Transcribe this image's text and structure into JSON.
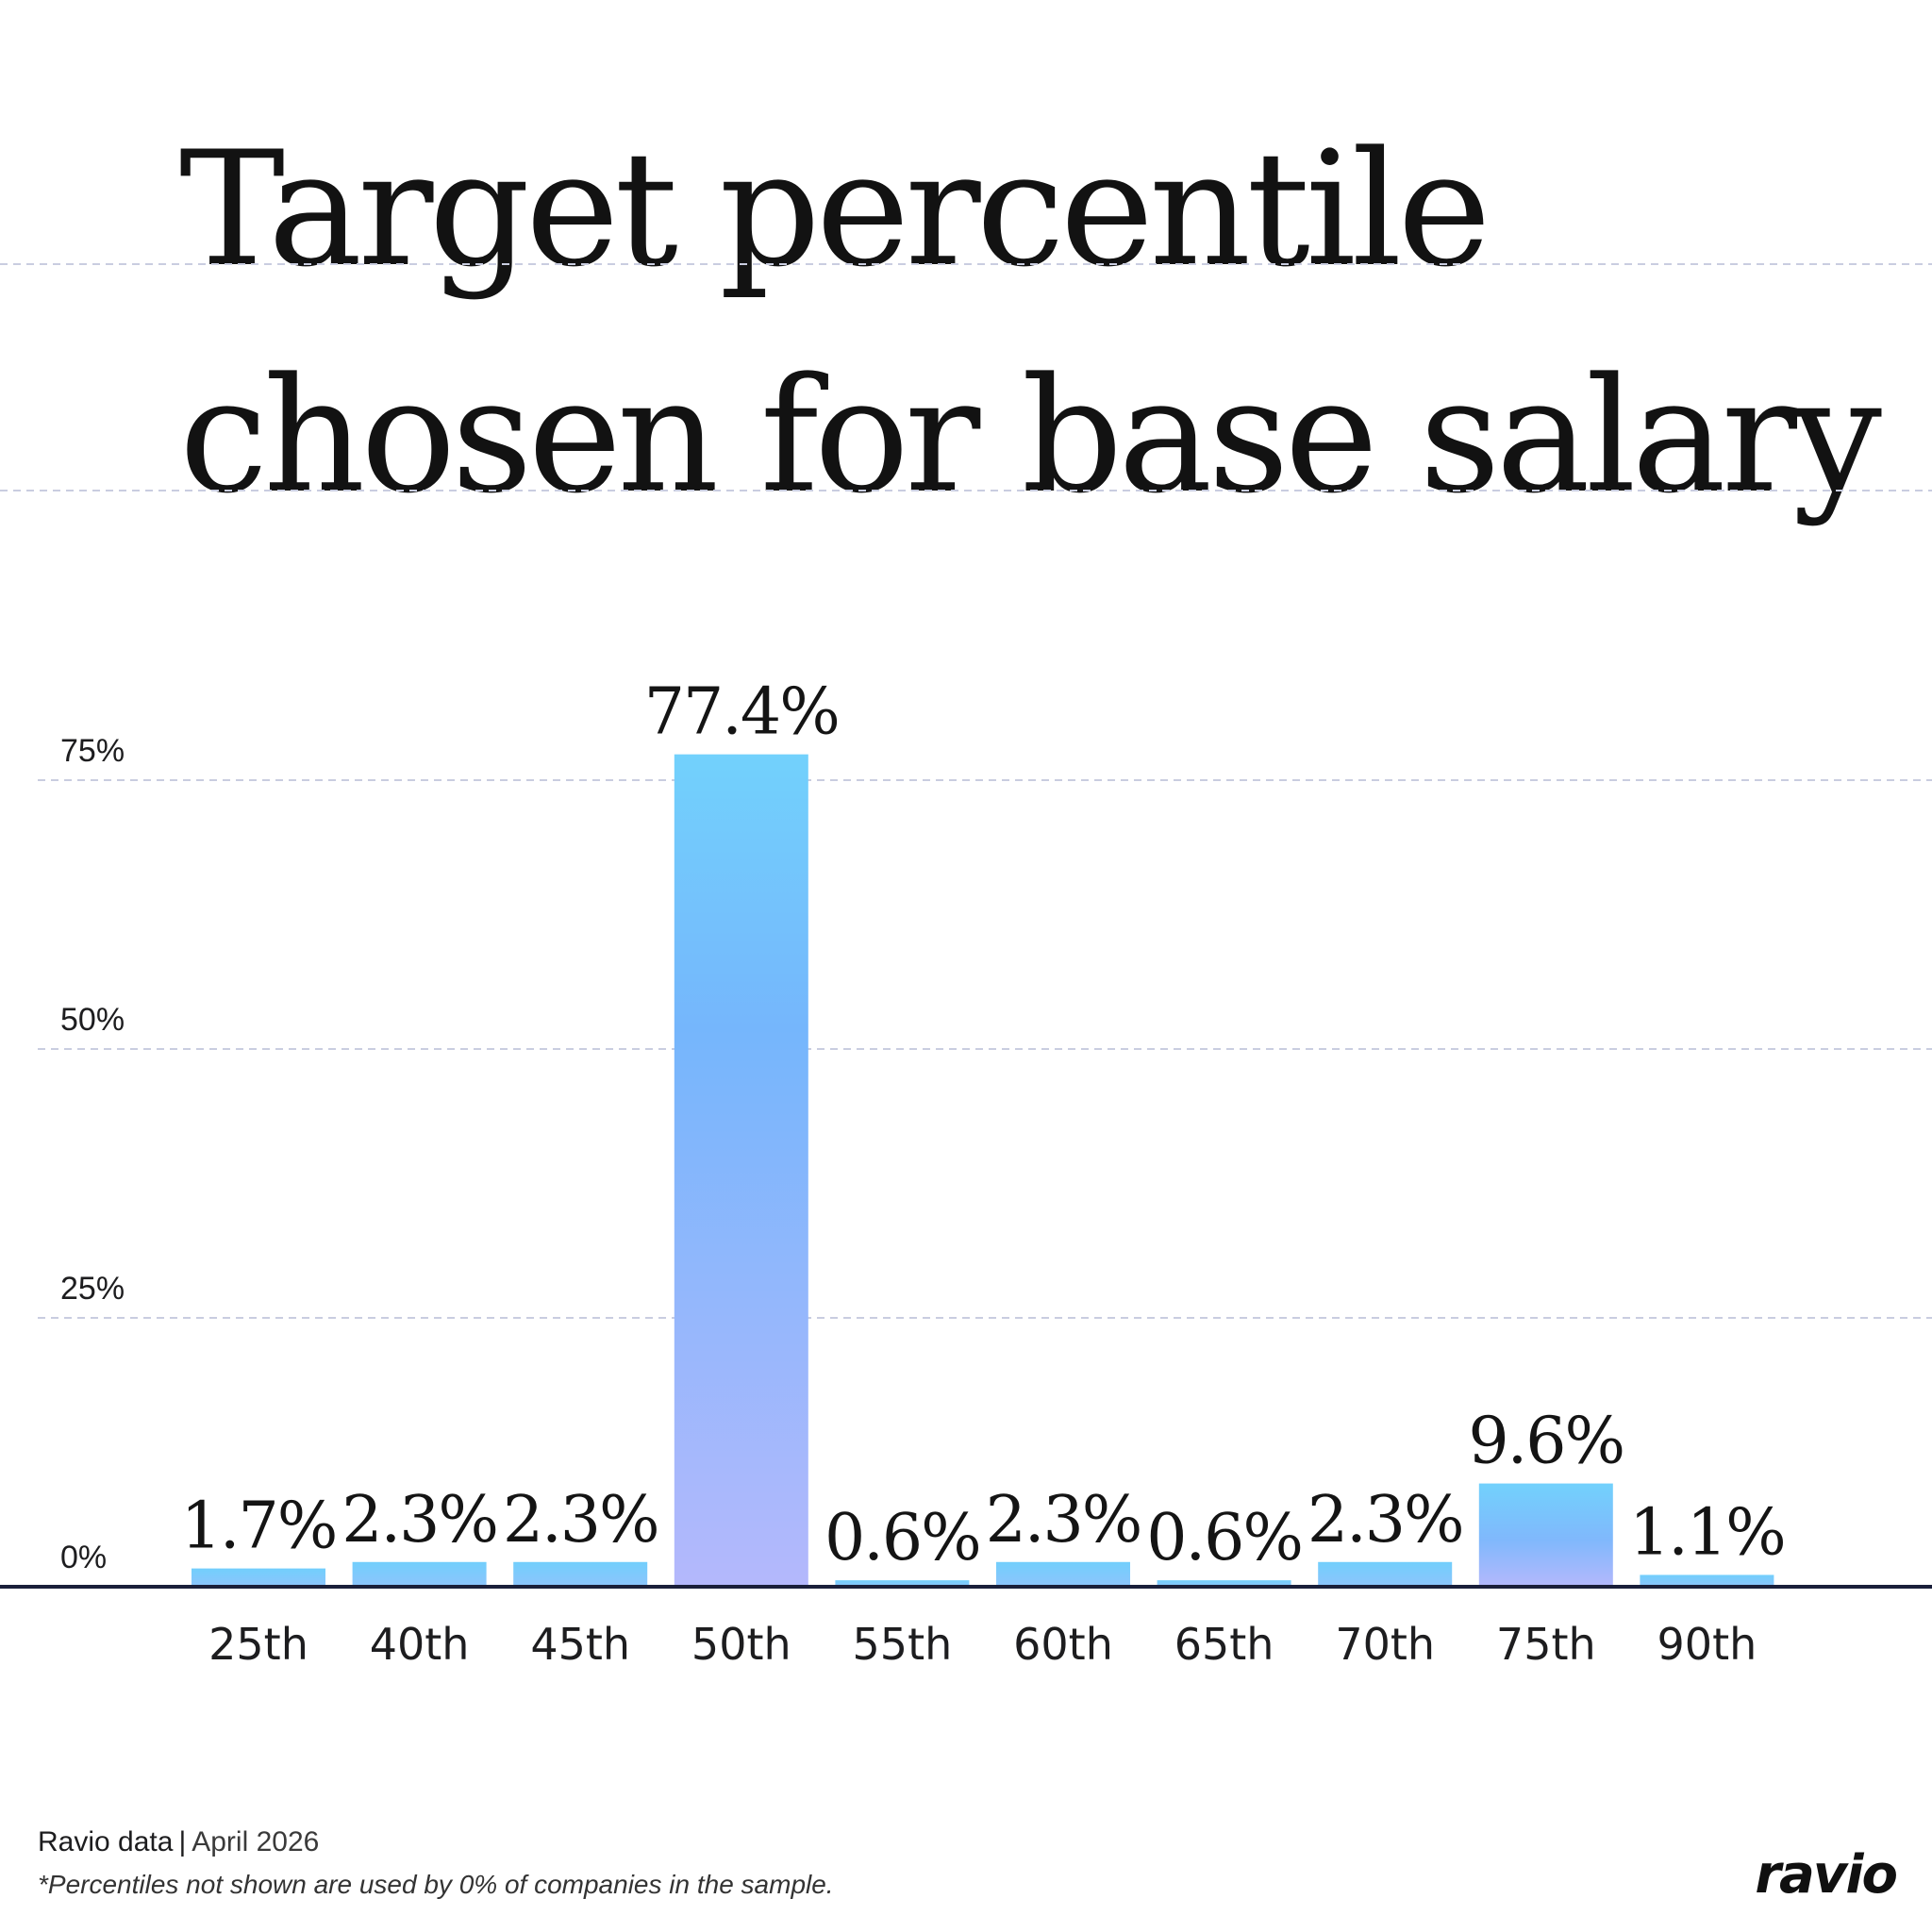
{
  "chart_data": {
    "type": "bar",
    "title": [
      "Target percentile",
      "chosen for base salary"
    ],
    "categories": [
      "25th",
      "40th",
      "45th",
      "50th",
      "55th",
      "60th",
      "65th",
      "70th",
      "75th",
      "90th"
    ],
    "values": [
      1.7,
      2.3,
      2.3,
      77.4,
      0.6,
      2.3,
      0.6,
      2.3,
      9.6,
      1.1
    ],
    "value_labels": [
      "1.7%",
      "2.3%",
      "2.3%",
      "77.4%",
      "0.6%",
      "2.3%",
      "0.6%",
      "2.3%",
      "9.6%",
      "1.1%"
    ],
    "yticks": [
      0,
      25,
      50,
      75
    ],
    "ytick_labels": [
      "0%",
      "25%",
      "50%",
      "75%"
    ],
    "ylim": [
      0,
      75
    ],
    "grid": true,
    "legend": "none",
    "xlabel": "",
    "ylabel": "",
    "colors": {
      "bar_top": "#72d1fc",
      "bar_mid": "#80b8fc",
      "bar_bottom": "#b4b8fc",
      "grid": "#c9cde0",
      "baseline": "#1a1f3a",
      "text": "#141414"
    }
  },
  "footer": {
    "source": "Ravio data",
    "separator": "|",
    "date": "April 2026",
    "note": "*Percentiles not shown are used by 0% of companies in the sample."
  },
  "brand": {
    "logo_text": "ravio"
  }
}
